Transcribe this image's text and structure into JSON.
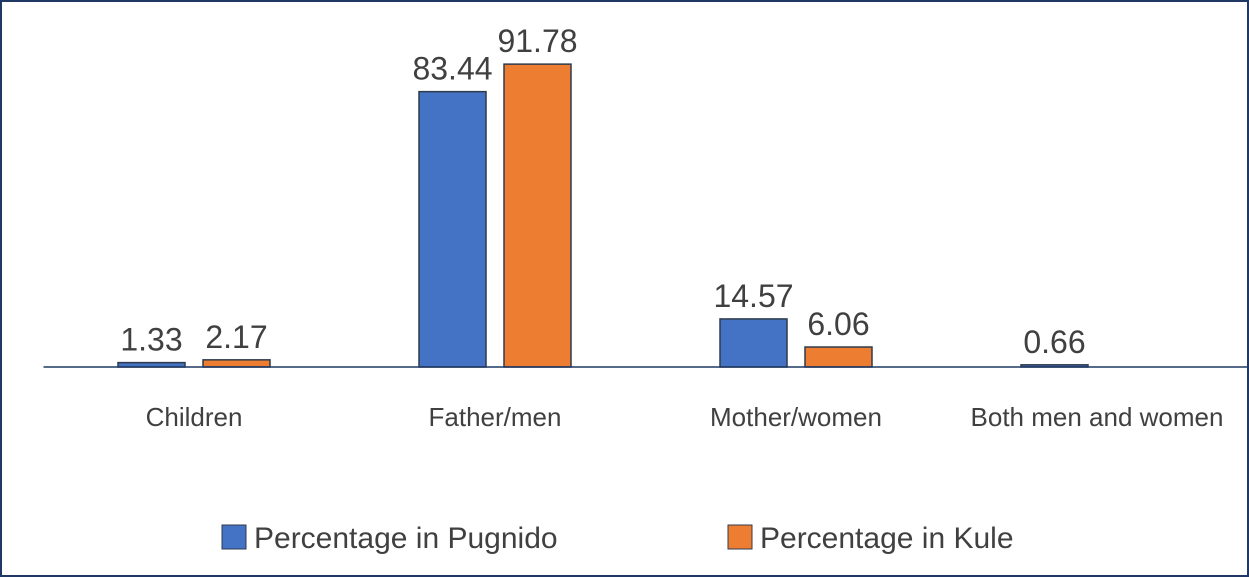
{
  "chart_data": {
    "type": "bar",
    "categories": [
      "Children",
      "Father/men",
      "Mother/women",
      "Both men and women"
    ],
    "series": [
      {
        "name": "Percentage in Pugnido",
        "color": "#4472c4",
        "values": [
          1.33,
          83.44,
          14.57,
          0.66
        ]
      },
      {
        "name": "Percentage in Kule",
        "color": "#ed7d31",
        "values": [
          2.17,
          91.78,
          6.06,
          null
        ]
      }
    ],
    "ylim": [
      0,
      100
    ],
    "legend": "bottom"
  }
}
